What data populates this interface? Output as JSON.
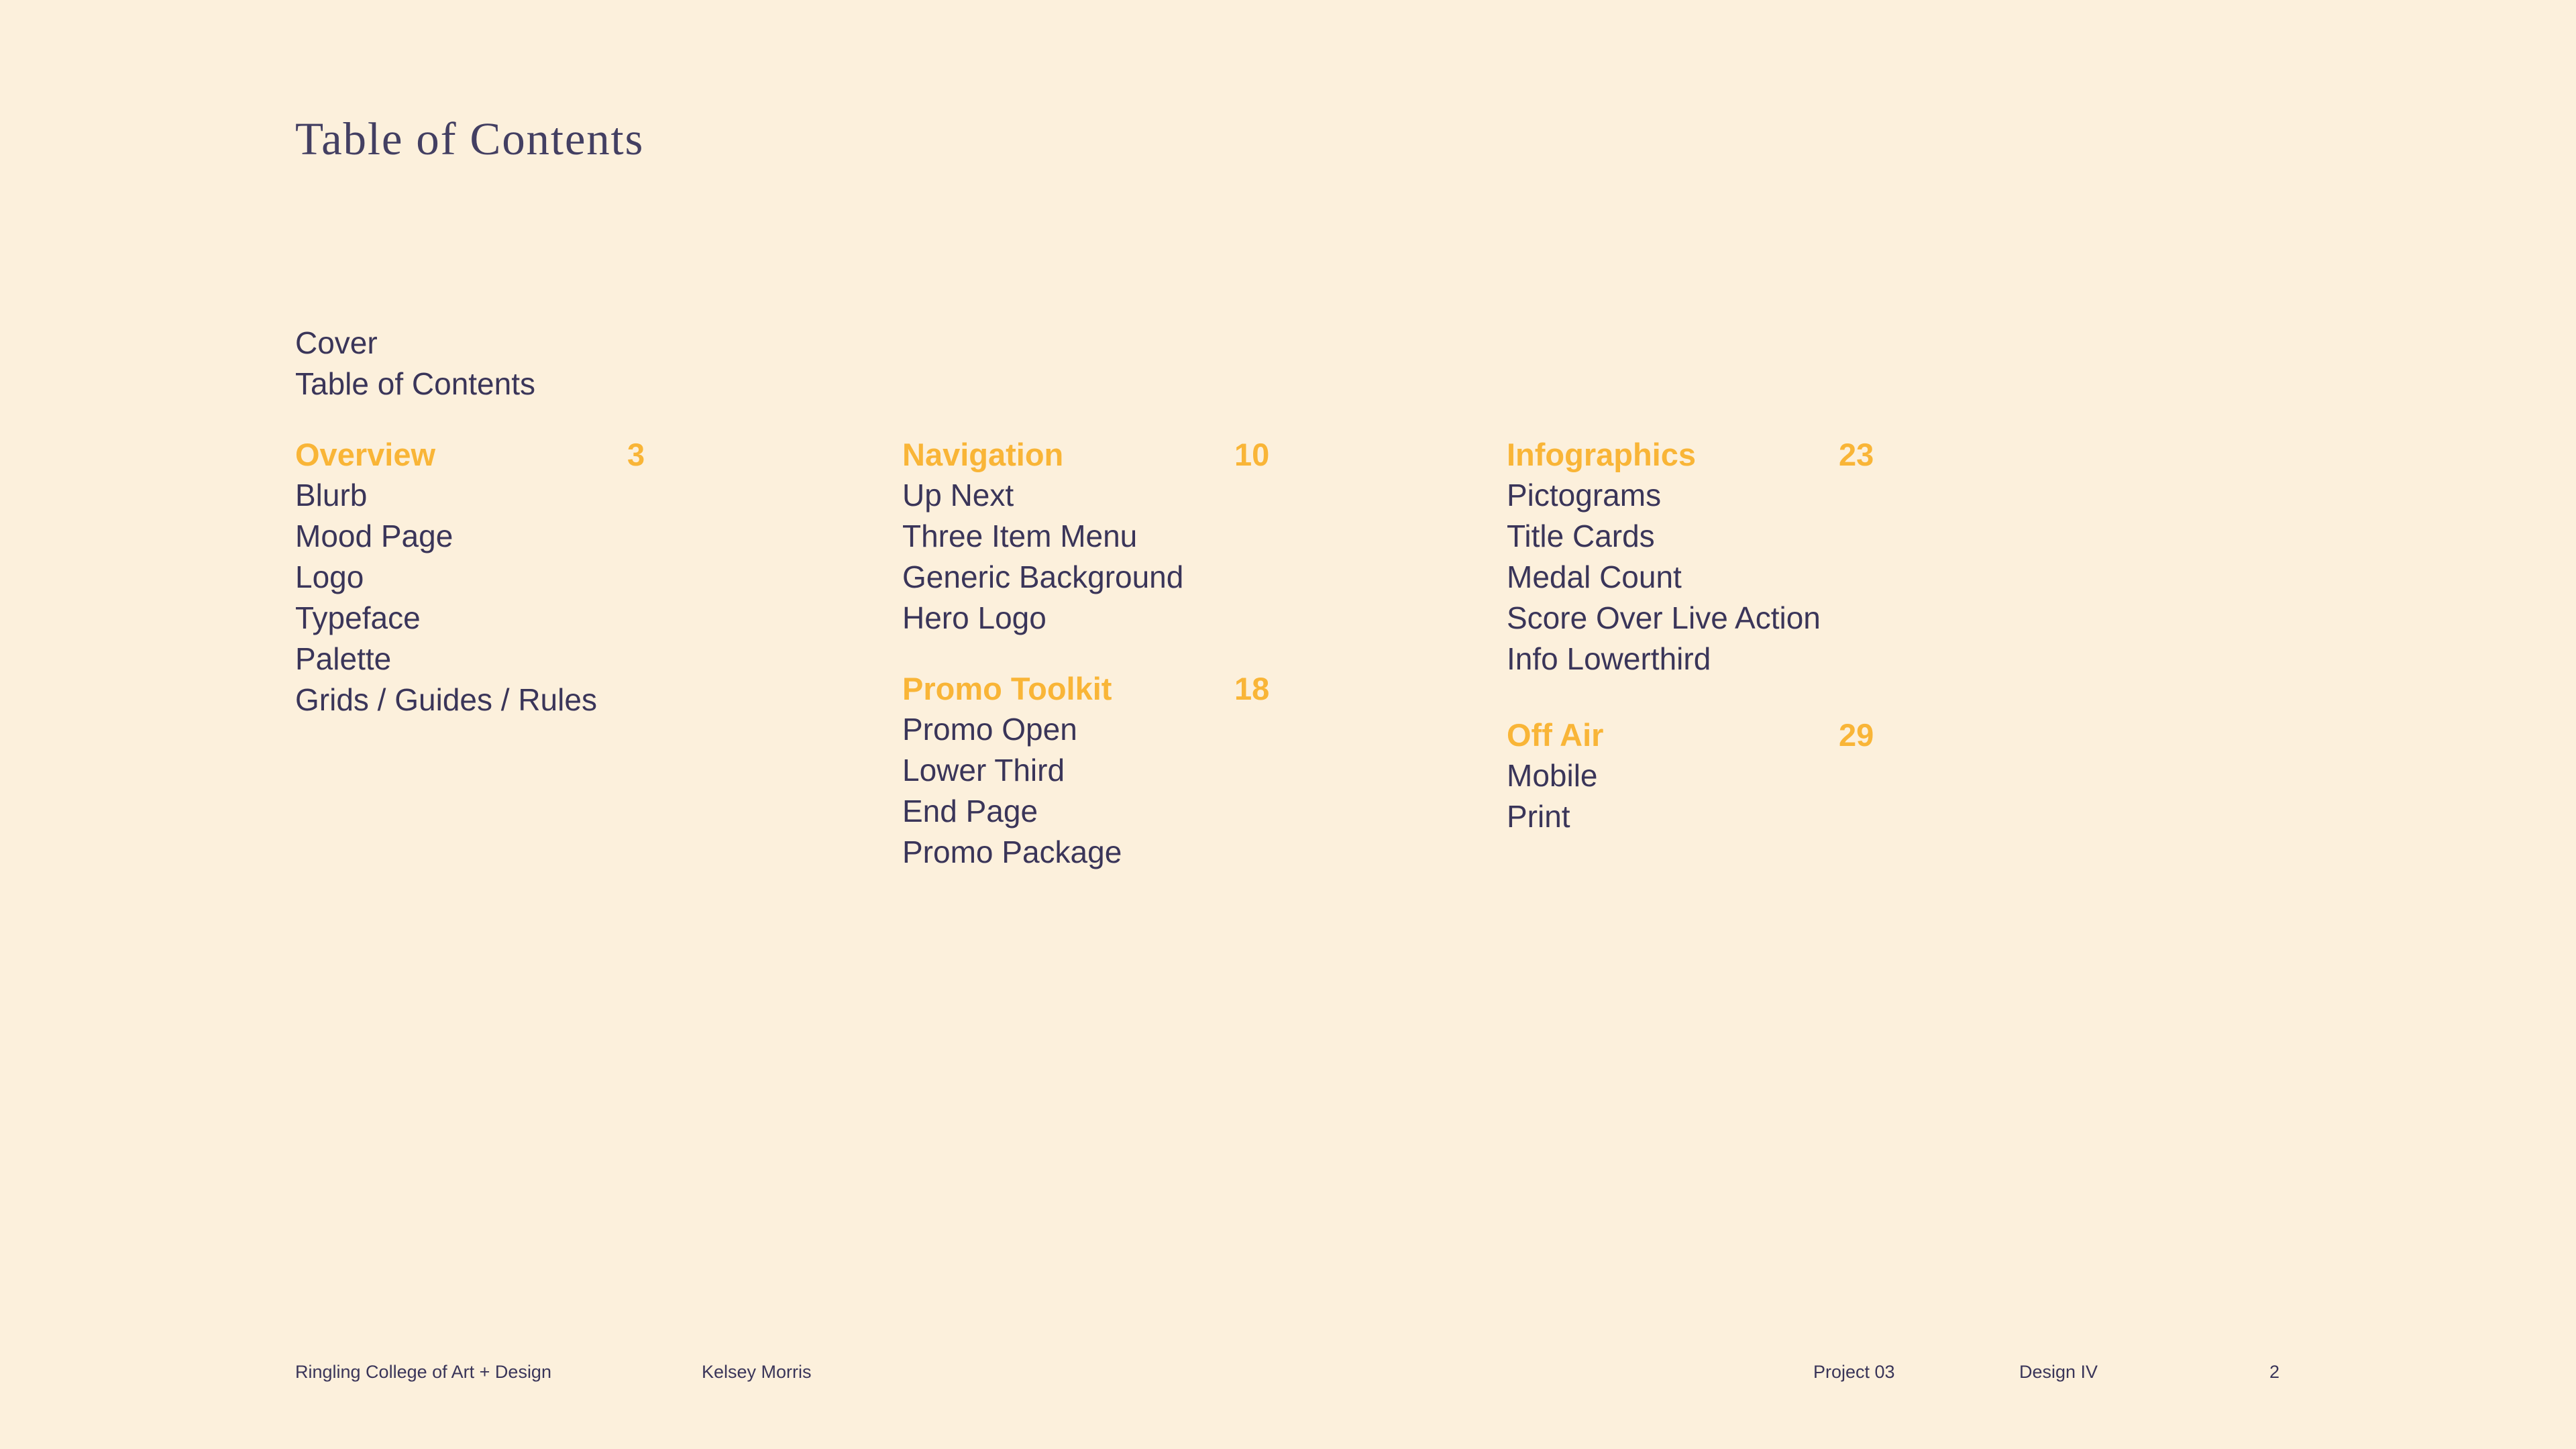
{
  "page": {
    "title": "Table of Contents"
  },
  "colors": {
    "background": "#fcf0dc",
    "text": "#3a3559",
    "title": "#433f62",
    "accent": "#f9b537"
  },
  "toc": {
    "intro": [
      "Cover",
      "Table of Contents"
    ],
    "columns": [
      {
        "sections": [
          {
            "heading": "Overview",
            "page": "3",
            "items": [
              "Blurb",
              "Mood Page",
              "Logo",
              "Typeface",
              "Palette",
              "Grids / Guides / Rules"
            ]
          }
        ]
      },
      {
        "sections": [
          {
            "heading": "Navigation",
            "page": "10",
            "items": [
              "Up Next",
              "Three Item Menu",
              "Generic Background",
              "Hero Logo"
            ]
          },
          {
            "heading": "Promo Toolkit",
            "page": "18",
            "items": [
              "Promo Open",
              "Lower Third",
              "End Page",
              "Promo Package"
            ]
          }
        ]
      },
      {
        "sections": [
          {
            "heading": "Infographics",
            "page": "23",
            "items": [
              "Pictograms",
              "Title Cards",
              "Medal Count",
              "Score Over Live Action",
              "Info Lowerthird"
            ]
          },
          {
            "heading": "Off Air",
            "page": "29",
            "items": [
              "Mobile",
              "Print"
            ]
          }
        ]
      }
    ]
  },
  "footer": {
    "institution": "Ringling College of Art + Design",
    "author": "Kelsey Morris",
    "project": "Project 03",
    "course": "Design IV",
    "page_number": "2"
  }
}
